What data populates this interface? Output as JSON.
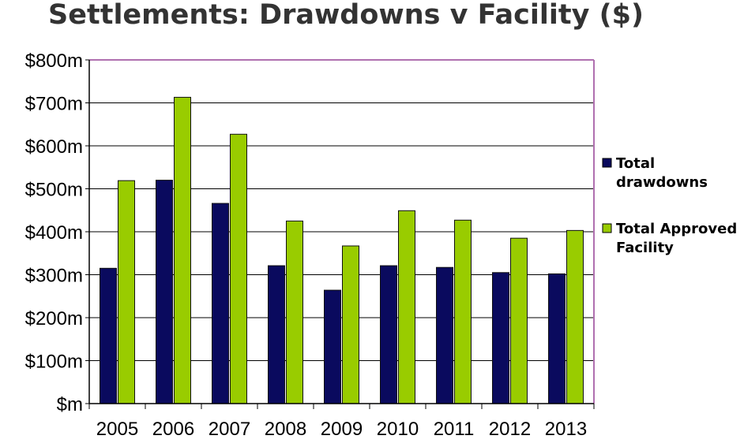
{
  "chart_data": {
    "type": "bar",
    "title": "Settlements: Drawdowns v Facility ($)",
    "categories": [
      "2005",
      "2006",
      "2007",
      "2008",
      "2009",
      "2010",
      "2011",
      "2012",
      "2013"
    ],
    "series": [
      {
        "name": "Total drawdowns",
        "color": "#0a0a5e",
        "values": [
          315,
          520,
          466,
          321,
          264,
          321,
          317,
          305,
          302
        ]
      },
      {
        "name": "Total Approved Facility",
        "color": "#99cc00",
        "values": [
          519,
          713,
          627,
          425,
          367,
          449,
          427,
          385,
          403
        ]
      }
    ],
    "yticks": [
      "$m",
      "$100m",
      "$200m",
      "$300m",
      "$400m",
      "$500m",
      "$600m",
      "$700m",
      "$800m"
    ],
    "ylim": [
      0,
      800
    ],
    "ytick_step": 100,
    "grid": true,
    "legend_position": "right",
    "plot_border_color": "#b070b0",
    "xlabel": "",
    "ylabel": ""
  }
}
